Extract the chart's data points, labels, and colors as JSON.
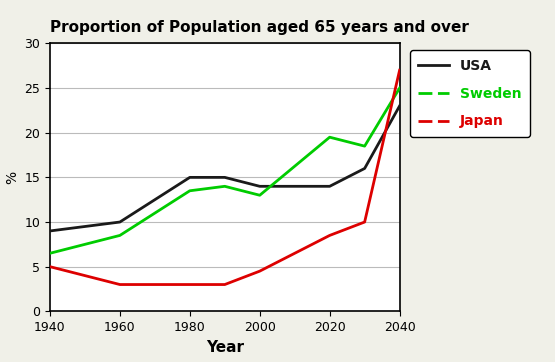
{
  "title": "Proportion of Population aged 65 years and over",
  "xlabel": "Year",
  "ylabel": "%",
  "years": [
    1940,
    1960,
    1980,
    1990,
    2000,
    2020,
    2030,
    2040
  ],
  "usa": [
    9,
    10,
    15,
    15,
    14,
    14,
    16,
    23
  ],
  "sweden": [
    6.5,
    8.5,
    13.5,
    14,
    13,
    19.5,
    18.5,
    25
  ],
  "japan": [
    5,
    3,
    3,
    3,
    4.5,
    8.5,
    10,
    27
  ],
  "usa_color": "#1a1a1a",
  "sweden_color": "#00cc00",
  "japan_color": "#dd0000",
  "ylim": [
    0,
    30
  ],
  "xlim": [
    1940,
    2040
  ],
  "xticks": [
    1940,
    1960,
    1980,
    2000,
    2020,
    2040
  ],
  "yticks": [
    0,
    5,
    10,
    15,
    20,
    25,
    30
  ],
  "title_fontsize": 11,
  "legend_labels": [
    "USA",
    "Sweden",
    "Japan"
  ],
  "legend_colors": [
    "#1a1a1a",
    "#00cc00",
    "#dd0000"
  ],
  "bg_outer": "#f0f0e8",
  "bg_inner": "#ffffff",
  "linewidth": 2.0
}
